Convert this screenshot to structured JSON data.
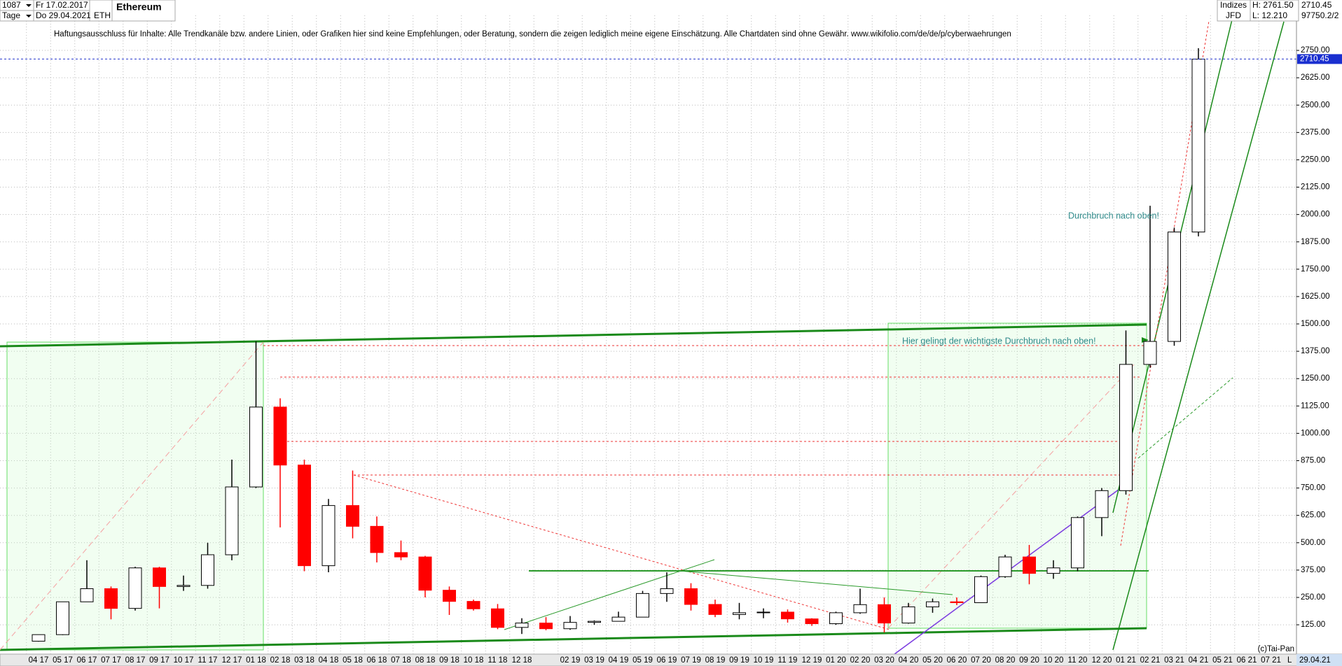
{
  "chart_data": {
    "type": "candlestick",
    "title": "Ethereum",
    "header": {
      "bars": "1087",
      "start": "Fr 17.02.2017",
      "period": "Tage",
      "end": "Do 29.04.2021",
      "symbol": "ETH",
      "market": "Indizes",
      "exchange": "JFD",
      "high": "H: 2761.50",
      "low": "L: 12.210",
      "extra": "97750.2/2"
    },
    "disclaimer": "Haftungsausschluss für Inhalte: Alle Trendkanäle bzw. andere Linien, oder Grafiken hier sind keine Empfehlungen, oder Beratung, sondern die zeigen lediglich meine eigene Einschätzung. Alle Chartdaten sind ohne Gewähr.  www.wikifolio.com/de/de/p/cyberwaehrungen",
    "annotations": [
      "Durchbruch nach oben!",
      "Hier gelingt der wichtigste Durchbruch nach oben!"
    ],
    "footer": {
      "copyright": "(c)Tai-Pan",
      "date": "29.04.21",
      "scale": "L"
    },
    "last": 2710.45,
    "up_color": "#ffffff",
    "down_color": "#ff0000",
    "categories": [
      "04 17",
      "05 17",
      "06 17",
      "07 17",
      "08 17",
      "09 17",
      "10 17",
      "11 17",
      "12 17",
      "01 18",
      "02 18",
      "03 18",
      "04 18",
      "05 18",
      "06 18",
      "07 18",
      "08 18",
      "09 18",
      "10 18",
      "11 18",
      "12 18",
      null,
      "02 19",
      "03 19",
      "04 19",
      "05 19",
      "06 19",
      "07 19",
      "08 19",
      "09 19",
      "10 19",
      "11 19",
      "12 19",
      "01 20",
      "02 20",
      "03 20",
      "04 20",
      "05 20",
      "06 20",
      "07 20",
      "08 20",
      "09 20",
      "10 20",
      "11 20",
      "12 20",
      "01 21",
      "02 21",
      "03 21",
      "04 21",
      "05 21",
      "06 21",
      "07 21"
    ],
    "open": [
      50,
      80,
      230,
      290,
      200,
      385,
      300,
      305,
      445,
      755,
      1120,
      855,
      395,
      670,
      575,
      455,
      435,
      283,
      232,
      198,
      113,
      133,
      107,
      136,
      141,
      160,
      268,
      290,
      218,
      172,
      180,
      183,
      152,
      130,
      180,
      217,
      133,
      207,
      230,
      226,
      345,
      435,
      360,
      385,
      615,
      738,
      1315,
      1420,
      1920,
      null,
      null,
      null
    ],
    "high": [
      80,
      230,
      420,
      300,
      390,
      390,
      350,
      500,
      880,
      1420,
      1160,
      880,
      700,
      830,
      620,
      510,
      440,
      300,
      240,
      220,
      155,
      160,
      165,
      145,
      185,
      280,
      365,
      315,
      240,
      225,
      200,
      195,
      155,
      185,
      290,
      250,
      225,
      245,
      250,
      350,
      445,
      490,
      420,
      620,
      750,
      1470,
      2040,
      1940,
      2760,
      null,
      null,
      null
    ],
    "low": [
      48,
      78,
      230,
      150,
      190,
      200,
      280,
      290,
      420,
      750,
      570,
      370,
      365,
      520,
      410,
      420,
      250,
      170,
      190,
      105,
      83,
      100,
      102,
      125,
      140,
      160,
      230,
      190,
      160,
      150,
      155,
      135,
      120,
      125,
      175,
      90,
      130,
      180,
      215,
      225,
      340,
      310,
      335,
      370,
      530,
      720,
      1300,
      1400,
      1900,
      null,
      null,
      null
    ],
    "close": [
      80,
      230,
      290,
      200,
      385,
      300,
      305,
      445,
      755,
      1120,
      855,
      395,
      670,
      575,
      455,
      435,
      283,
      232,
      198,
      113,
      133,
      107,
      136,
      141,
      160,
      268,
      290,
      218,
      172,
      180,
      183,
      152,
      130,
      180,
      217,
      133,
      207,
      230,
      226,
      345,
      435,
      360,
      385,
      615,
      738,
      1315,
      1420,
      1920,
      2710,
      null,
      null,
      null
    ],
    "ylim": [
      -9,
      2910
    ],
    "yticks": [
      {
        "value": 125,
        "label": "125.00"
      },
      {
        "value": 250,
        "label": "250.00"
      },
      {
        "value": 375,
        "label": "375.00"
      },
      {
        "value": 500,
        "label": "500.00"
      },
      {
        "value": 625,
        "label": "625.00"
      },
      {
        "value": 750,
        "label": "750.00"
      },
      {
        "value": 875,
        "label": "875.00"
      },
      {
        "value": 1000,
        "label": "1000.00"
      },
      {
        "value": 1125,
        "label": "1125.00"
      },
      {
        "value": 1250,
        "label": "1250.00"
      },
      {
        "value": 1375,
        "label": "1375.00"
      },
      {
        "value": 1500,
        "label": "1500.00"
      },
      {
        "value": 1625,
        "label": "1625.00"
      },
      {
        "value": 1750,
        "label": "1750.00"
      },
      {
        "value": 1875,
        "label": "1875.00"
      },
      {
        "value": 2000,
        "label": "2000.00"
      },
      {
        "value": 2125,
        "label": "2125.00"
      },
      {
        "value": 2250,
        "label": "2250.00"
      },
      {
        "value": 2375,
        "label": "2375.00"
      },
      {
        "value": 2500,
        "label": "2500.00"
      },
      {
        "value": 2625,
        "label": "2625.00"
      },
      {
        "value": 2750,
        "label": "2750.00"
      }
    ],
    "grid": true
  }
}
